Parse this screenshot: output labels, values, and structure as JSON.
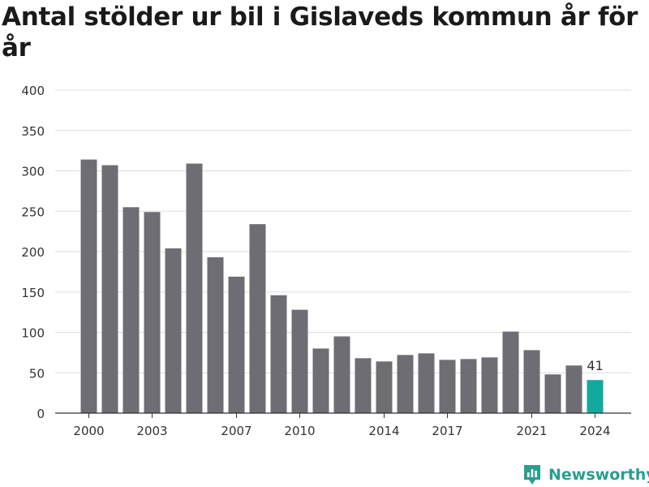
{
  "title": "Antal stölder ur bil i Gislaveds kommun år för år",
  "brand": {
    "name": "Newsworthy",
    "icon": "newsworthy-logo-icon"
  },
  "colors": {
    "bar": "#6e6d73",
    "highlight": "#13a89e",
    "grid": "#dddddd",
    "text": "#333333"
  },
  "chart_data": {
    "type": "bar",
    "title": "Antal stölder ur bil i Gislaveds kommun år för år",
    "xlabel": "",
    "ylabel": "",
    "categories": [
      "2000",
      "2001",
      "2002",
      "2003",
      "2004",
      "2005",
      "2006",
      "2007",
      "2008",
      "2009",
      "2010",
      "2011",
      "2012",
      "2013",
      "2014",
      "2015",
      "2016",
      "2017",
      "2018",
      "2019",
      "2020",
      "2021",
      "2022",
      "2023",
      "2024"
    ],
    "values": [
      314,
      307,
      255,
      249,
      204,
      309,
      193,
      169,
      234,
      146,
      128,
      80,
      95,
      68,
      64,
      72,
      74,
      66,
      67,
      69,
      101,
      78,
      48,
      59,
      41
    ],
    "x_tick_labels": [
      "2000",
      "2003",
      "2007",
      "2010",
      "2014",
      "2017",
      "2021",
      "2024"
    ],
    "y_ticks": [
      0,
      50,
      100,
      150,
      200,
      250,
      300,
      350,
      400
    ],
    "ylim": [
      0,
      400
    ],
    "highlight_category": "2024",
    "highlight_label": "41",
    "grid": true,
    "legend": "none"
  }
}
